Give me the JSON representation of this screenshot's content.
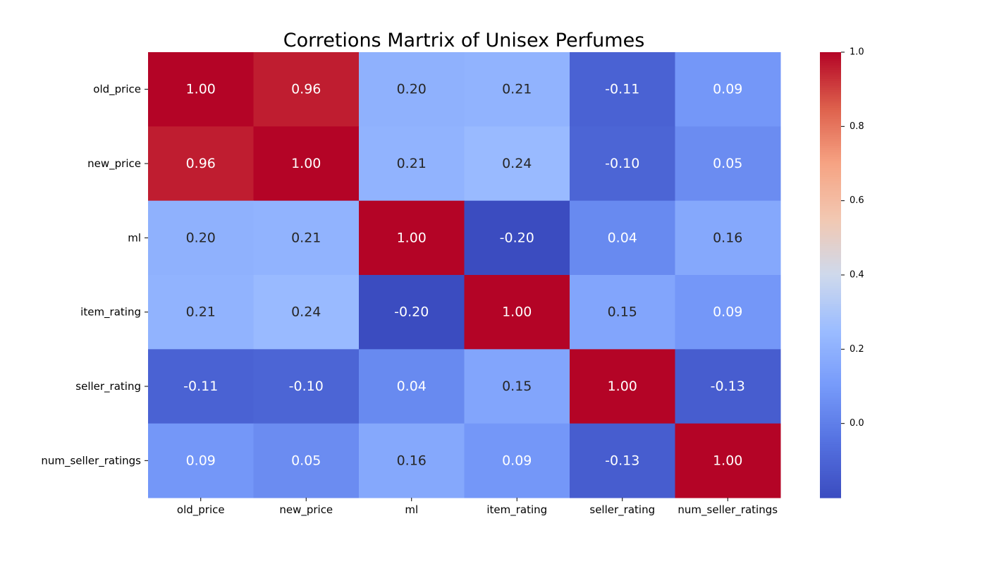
{
  "chart_data": {
    "type": "heatmap",
    "title": "Corretions Martrix of Unisex Perfumes",
    "xlabel": "",
    "ylabel": "",
    "x_labels": [
      "old_price",
      "new_price",
      "ml",
      "item_rating",
      "seller_rating",
      "num_seller_ratings"
    ],
    "y_labels": [
      "old_price",
      "new_price",
      "ml",
      "item_rating",
      "seller_rating",
      "num_seller_ratings"
    ],
    "values": [
      [
        1.0,
        0.96,
        0.2,
        0.21,
        -0.11,
        0.09
      ],
      [
        0.96,
        1.0,
        0.21,
        0.24,
        -0.1,
        0.05
      ],
      [
        0.2,
        0.21,
        1.0,
        -0.2,
        0.04,
        0.16
      ],
      [
        0.21,
        0.24,
        -0.2,
        1.0,
        0.15,
        0.09
      ],
      [
        -0.11,
        -0.1,
        0.04,
        0.15,
        1.0,
        -0.13
      ],
      [
        0.09,
        0.05,
        0.16,
        0.09,
        -0.13,
        1.0
      ]
    ],
    "annotation_format": "0.00",
    "colormap": "coolwarm",
    "color_range": [
      -0.2,
      1.0
    ],
    "colorbar_ticks": [
      "0.0",
      "0.2",
      "0.4",
      "0.6",
      "0.8",
      "1.0"
    ],
    "grid": false,
    "colorbar_placement": "right"
  }
}
